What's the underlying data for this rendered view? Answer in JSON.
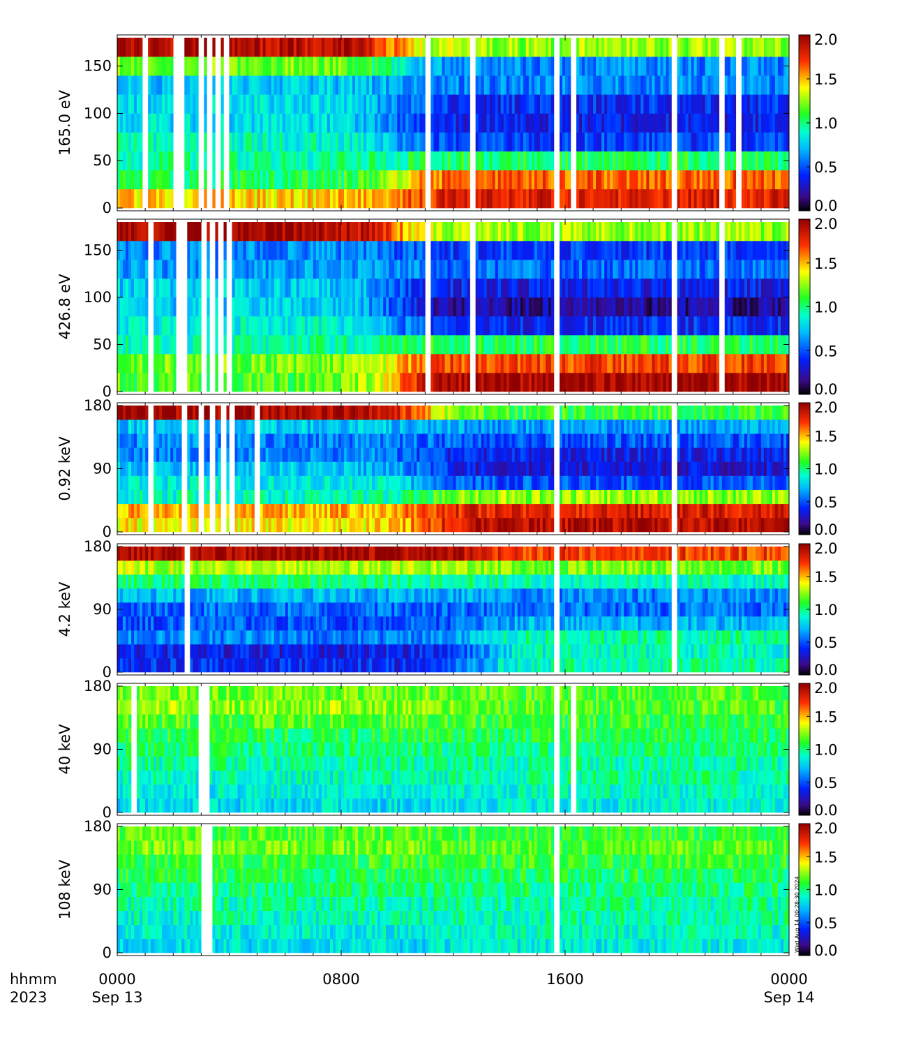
{
  "chart_data": [
    {
      "type": "heatmap",
      "ylabel": "165.0 eV",
      "yticks": [
        "0",
        "50",
        "100",
        "150"
      ],
      "ylim": [
        0,
        180
      ],
      "colorbar": {
        "range": [
          0.0,
          2.0
        ],
        "ticks": [
          "0.0",
          "0.5",
          "1.0",
          "1.5",
          "2.0"
        ]
      },
      "bins": [
        10,
        30,
        50,
        70,
        90,
        110,
        130,
        150,
        170
      ],
      "profile_start": [
        1.45,
        1.05,
        0.95,
        0.9,
        0.8,
        0.8,
        0.75,
        1.2,
        1.9
      ],
      "profile_end": [
        1.8,
        1.65,
        1.05,
        0.45,
        0.35,
        0.4,
        0.6,
        0.6,
        1.25
      ],
      "transition_hour": 10,
      "gaps": [
        1.0,
        2.1,
        2.3,
        3.0,
        3.3,
        3.6,
        3.9,
        11.1,
        12.7,
        15.7,
        16.3,
        19.9,
        21.6,
        22.2
      ]
    },
    {
      "type": "heatmap",
      "ylabel": "426.8 eV",
      "yticks": [
        "0",
        "50",
        "100",
        "150"
      ],
      "ylim": [
        0,
        180
      ],
      "colorbar": {
        "range": [
          0.0,
          2.0
        ],
        "ticks": [
          "0.0",
          "0.5",
          "1.0",
          "1.5",
          "2.0"
        ]
      },
      "bins": [
        10,
        30,
        50,
        70,
        90,
        110,
        130,
        150,
        170
      ],
      "profile_start": [
        1.15,
        1.2,
        0.95,
        0.85,
        0.75,
        0.75,
        0.65,
        0.6,
        1.95
      ],
      "profile_end": [
        1.95,
        1.7,
        1.05,
        0.4,
        0.2,
        0.35,
        0.55,
        0.45,
        1.25
      ],
      "transition_hour": 10,
      "gaps": [
        1.2,
        2.2,
        2.4,
        3.1,
        3.4,
        3.7,
        4.0,
        11.1,
        12.7,
        15.7,
        19.9,
        21.6
      ]
    },
    {
      "type": "heatmap",
      "ylabel": "0.92 keV",
      "yticks": [
        "0",
        "90",
        "180"
      ],
      "ylim": [
        0,
        180
      ],
      "colorbar": {
        "range": [
          0.0,
          2.0
        ],
        "ticks": [
          "0.0",
          "0.5",
          "1.0",
          "1.5",
          "2.0"
        ]
      },
      "bins": [
        10,
        30,
        50,
        70,
        90,
        110,
        130,
        150,
        170
      ],
      "profile_start": [
        1.4,
        1.5,
        0.9,
        0.85,
        0.75,
        0.6,
        0.6,
        0.75,
        1.95
      ],
      "profile_end": [
        1.9,
        1.8,
        1.25,
        0.5,
        0.3,
        0.35,
        0.5,
        0.65,
        1.1
      ],
      "transition_hour": 11,
      "gaps": [
        1.2,
        2.4,
        3.0,
        3.4,
        3.8,
        4.1,
        5.0,
        15.7,
        19.9
      ]
    },
    {
      "type": "heatmap",
      "ylabel": "4.2 keV",
      "yticks": [
        "0",
        "90",
        "180"
      ],
      "ylim": [
        0,
        180
      ],
      "colorbar": {
        "range": [
          0.0,
          2.0
        ],
        "ticks": [
          "0.0",
          "0.5",
          "1.0",
          "1.5",
          "2.0"
        ]
      },
      "bins": [
        10,
        30,
        50,
        70,
        90,
        110,
        130,
        150,
        170
      ],
      "profile_start": [
        0.4,
        0.35,
        0.6,
        0.5,
        0.55,
        0.7,
        1.0,
        1.3,
        1.95
      ],
      "profile_end": [
        0.95,
        0.9,
        0.95,
        0.7,
        0.55,
        0.6,
        0.9,
        1.2,
        1.7
      ],
      "transition_hour": 13,
      "gaps": [
        2.5,
        15.7,
        19.9
      ]
    },
    {
      "type": "heatmap",
      "ylabel": "40 keV",
      "yticks": [
        "0",
        "90",
        "180"
      ],
      "ylim": [
        0,
        180
      ],
      "colorbar": {
        "range": [
          0.0,
          2.0
        ],
        "ticks": [
          "0.0",
          "0.5",
          "1.0",
          "1.5",
          "2.0"
        ]
      },
      "bins": [
        10,
        30,
        50,
        70,
        90,
        110,
        130,
        150,
        170
      ],
      "profile_start": [
        0.8,
        0.85,
        0.9,
        0.95,
        1.0,
        1.05,
        1.15,
        1.25,
        1.2
      ],
      "profile_end": [
        0.85,
        0.9,
        0.95,
        0.95,
        1.0,
        1.05,
        1.1,
        1.15,
        1.15
      ],
      "transition_hour": 12,
      "gaps": [
        0.6,
        3.0,
        3.2,
        15.7,
        16.3
      ]
    },
    {
      "type": "heatmap",
      "ylabel": "108 keV",
      "yticks": [
        "0",
        "90",
        "180"
      ],
      "ylim": [
        0,
        180
      ],
      "colorbar": {
        "range": [
          0.0,
          2.0
        ],
        "ticks": [
          "0.0",
          "0.5",
          "1.0",
          "1.5",
          "2.0"
        ]
      },
      "bins": [
        10,
        30,
        50,
        70,
        90,
        110,
        130,
        150,
        170
      ],
      "profile_start": [
        0.8,
        0.85,
        0.9,
        0.95,
        1.0,
        1.05,
        1.1,
        1.2,
        1.15
      ],
      "profile_end": [
        0.85,
        0.9,
        0.95,
        0.95,
        1.0,
        1.05,
        1.1,
        1.15,
        1.1
      ],
      "transition_hour": 12,
      "gaps": [
        3.1,
        3.3,
        15.7
      ]
    }
  ],
  "time_axis": {
    "row1_label": "hhmm",
    "row2_label": "2023",
    "ticks": [
      {
        "hour": 0,
        "label": "0000",
        "sub": "Sep 13"
      },
      {
        "hour": 8,
        "label": "0800",
        "sub": ""
      },
      {
        "hour": 16,
        "label": "1600",
        "sub": ""
      },
      {
        "hour": 24,
        "label": "0000",
        "sub": "Sep 14"
      }
    ],
    "xlim": [
      0,
      24
    ]
  },
  "stamp": "Wed Aug 14 00:28:30 2024"
}
